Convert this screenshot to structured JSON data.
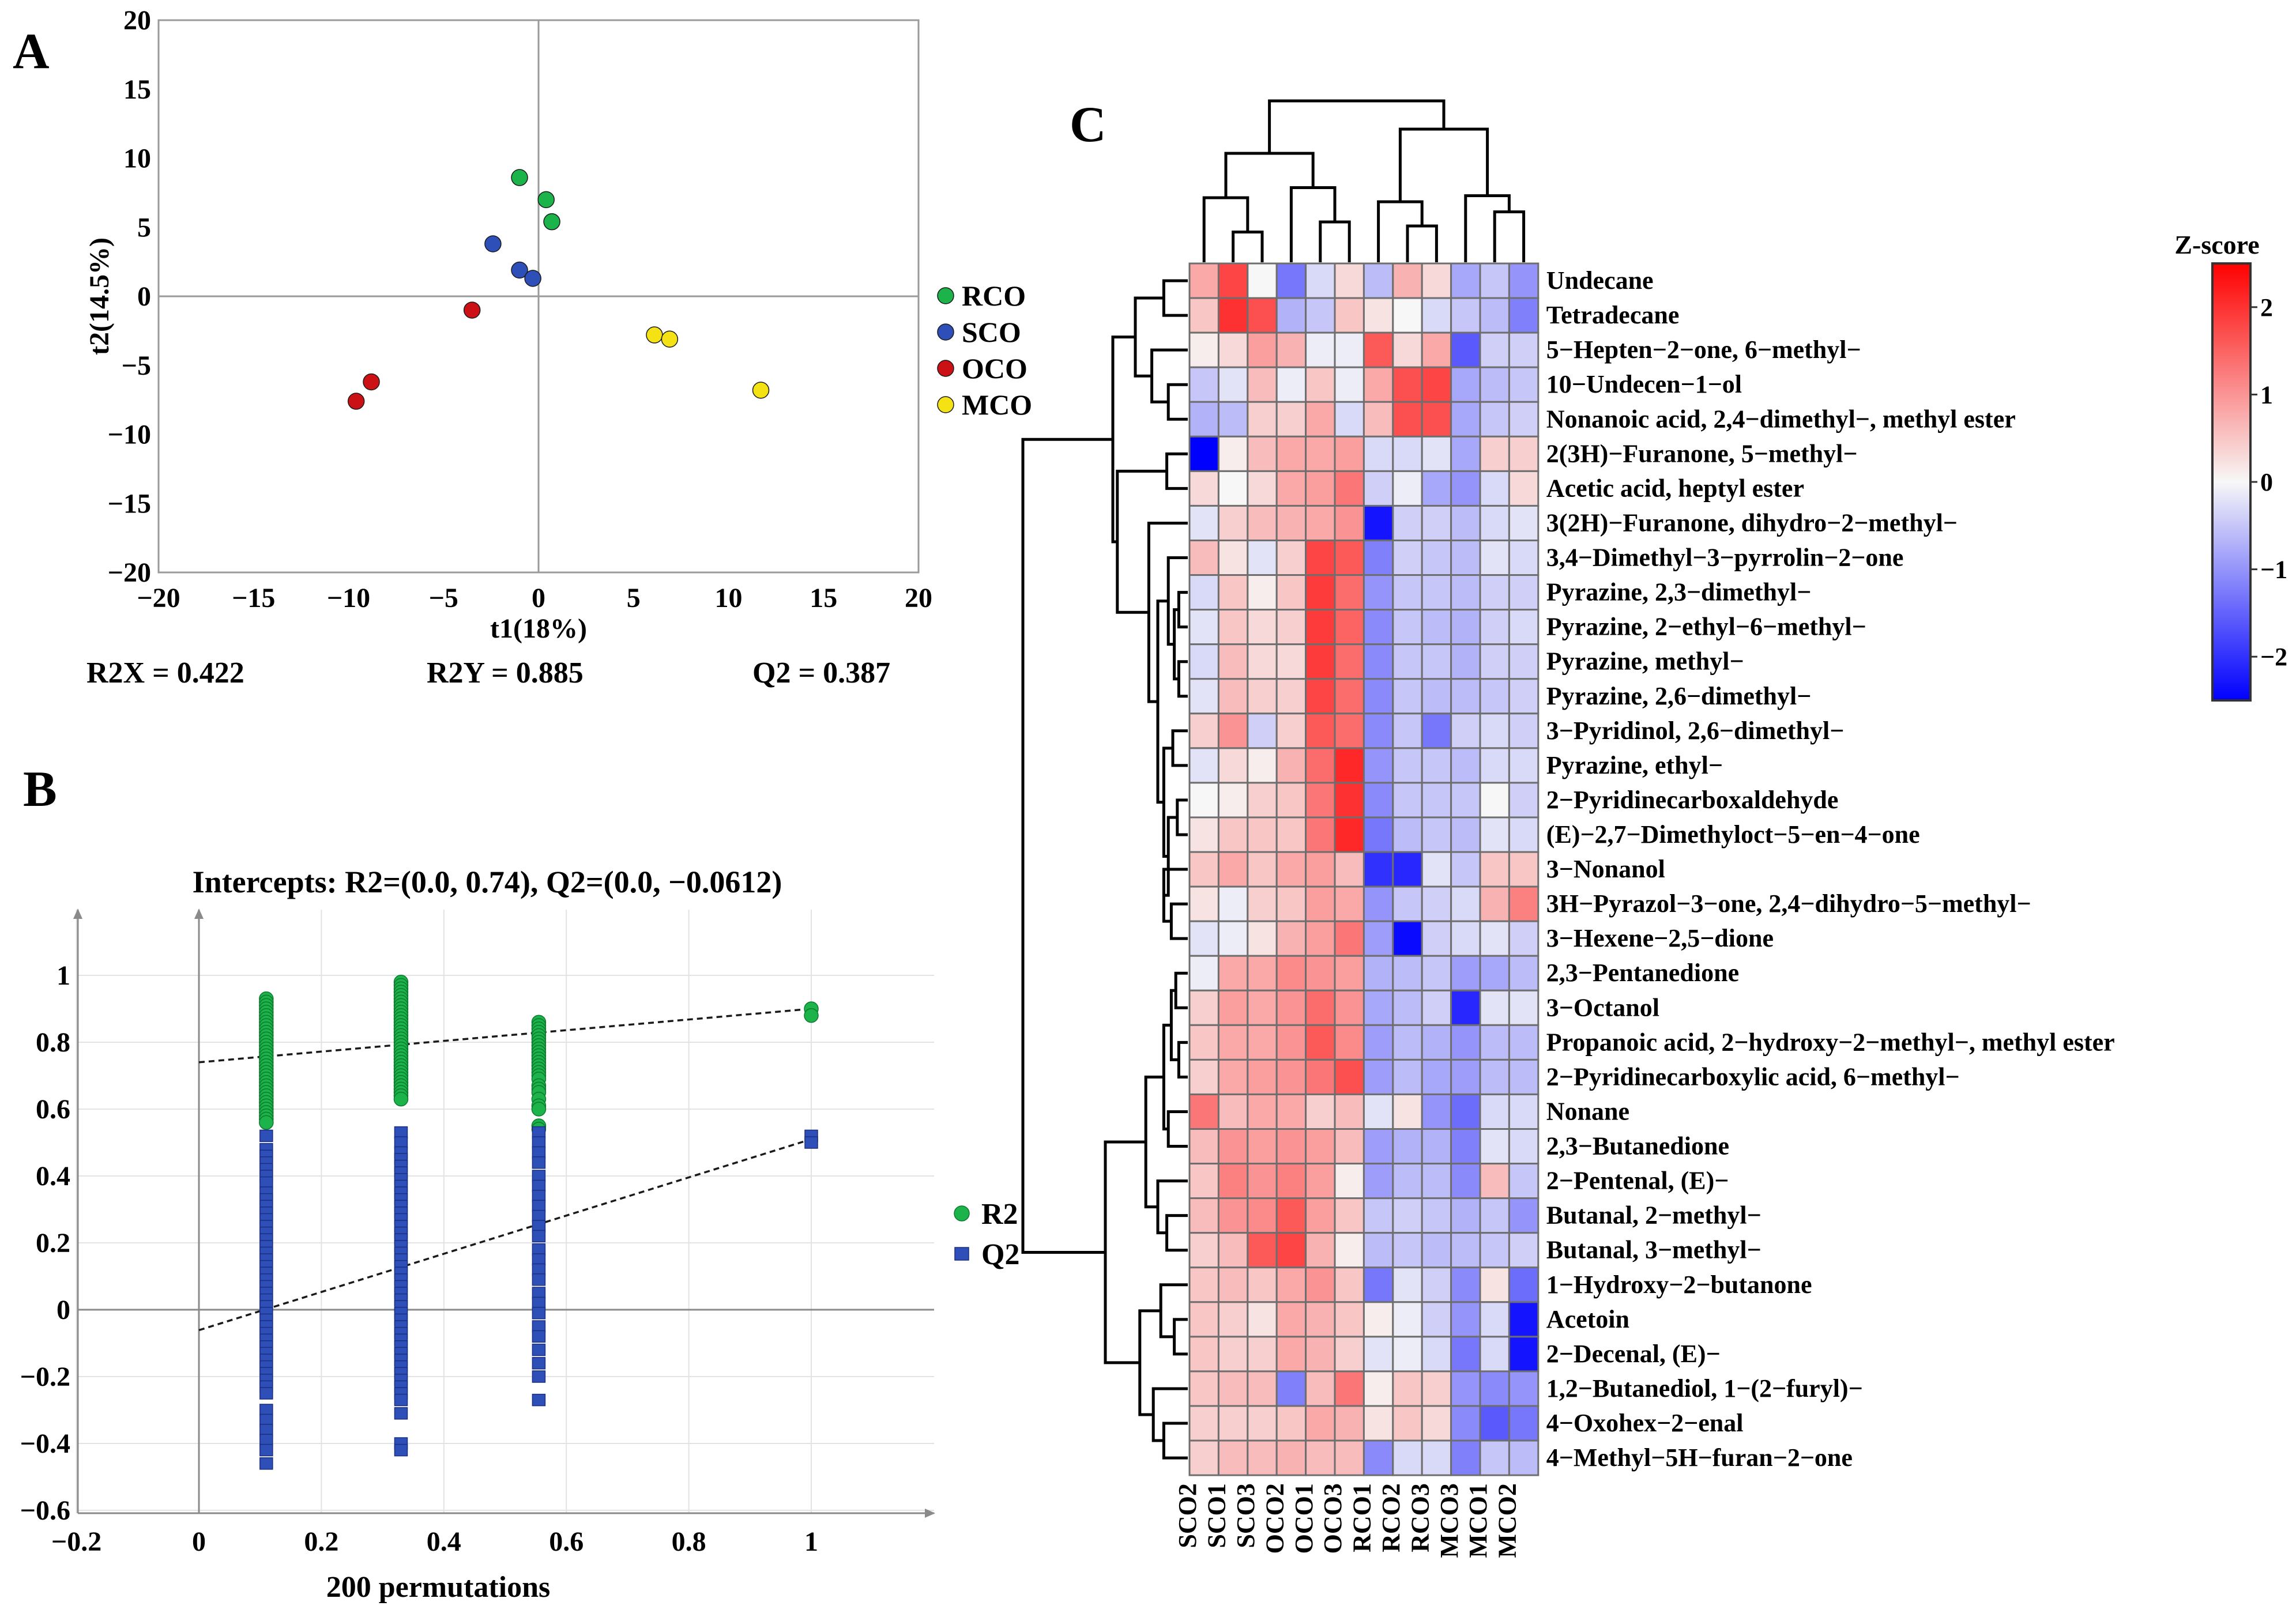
{
  "panels": {
    "a": "A",
    "b": "B",
    "c": "C"
  },
  "colors": {
    "RCO": "#1bb34a",
    "SCO": "#2e4fb8",
    "OCO": "#cc1116",
    "MCO": "#f4e215",
    "R2": "#1bb34a",
    "Q2": "#2e4fb8",
    "hm_low": "#0000ff",
    "hm_mid": "#f7f7f7",
    "hm_high": "#ff0000"
  },
  "chart_data": [
    {
      "type": "scatter",
      "panel": "A",
      "xlabel": "t1(18%)",
      "ylabel": "t2(14.5%)",
      "xlim": [
        -20,
        20
      ],
      "ylim": [
        -20,
        20
      ],
      "xticks": [
        "−20",
        "−15",
        "−10",
        "−5",
        "0",
        "5",
        "10",
        "15",
        "20"
      ],
      "yticks": [
        "20",
        "15",
        "10",
        "5",
        "0",
        "−5",
        "−10",
        "−15",
        "−20"
      ],
      "series": [
        {
          "name": "RCO",
          "points": [
            [
              -1.0,
              8.6
            ],
            [
              0.4,
              7.0
            ],
            [
              0.7,
              5.4
            ]
          ]
        },
        {
          "name": "SCO",
          "points": [
            [
              -2.4,
              3.8
            ],
            [
              -1.0,
              1.9
            ],
            [
              -0.3,
              1.3
            ]
          ]
        },
        {
          "name": "OCO",
          "points": [
            [
              -3.5,
              -1.0
            ],
            [
              -8.8,
              -6.2
            ],
            [
              -9.6,
              -7.6
            ]
          ]
        },
        {
          "name": "MCO",
          "points": [
            [
              6.1,
              -2.8
            ],
            [
              6.9,
              -3.1
            ],
            [
              11.7,
              -6.8
            ]
          ]
        }
      ],
      "stats": {
        "r2x": "R2X = 0.422",
        "r2y": "R2Y = 0.885",
        "q2": "Q2 = 0.387"
      }
    },
    {
      "type": "scatter",
      "panel": "B",
      "title": "Intercepts: R2=(0.0, 0.74), Q2=(0.0, −0.0612)",
      "xlabel": "200 permutations",
      "xlim": [
        -0.2,
        1.2
      ],
      "ylim": [
        -0.6,
        1.15
      ],
      "xticks": [
        "−0.2",
        "0",
        "0.2",
        "0.4",
        "0.6",
        "0.8",
        "1"
      ],
      "yticks": [
        "1",
        "0.8",
        "0.6",
        "0.4",
        "0.2",
        "0",
        "−0.2",
        "−0.4",
        "−0.6"
      ],
      "series": [
        {
          "name": "R2",
          "columns": [
            {
              "x": 0.11,
              "values": [
                0.93,
                0.92,
                0.91,
                0.9,
                0.89,
                0.88,
                0.87,
                0.86,
                0.85,
                0.84,
                0.83,
                0.82,
                0.81,
                0.8,
                0.79,
                0.78,
                0.77,
                0.76,
                0.75,
                0.74,
                0.73,
                0.72,
                0.71,
                0.7,
                0.69,
                0.68,
                0.67,
                0.66,
                0.65,
                0.64,
                0.63,
                0.62,
                0.61,
                0.6,
                0.59,
                0.58,
                0.57,
                0.56
              ]
            },
            {
              "x": 0.33,
              "values": [
                0.98,
                0.97,
                0.96,
                0.95,
                0.94,
                0.93,
                0.92,
                0.91,
                0.9,
                0.89,
                0.88,
                0.87,
                0.86,
                0.85,
                0.84,
                0.83,
                0.82,
                0.81,
                0.8,
                0.79,
                0.78,
                0.77,
                0.76,
                0.75,
                0.74,
                0.73,
                0.72,
                0.71,
                0.7,
                0.69,
                0.68,
                0.67,
                0.66,
                0.65,
                0.64,
                0.63
              ]
            },
            {
              "x": 0.555,
              "values": [
                0.86,
                0.85,
                0.84,
                0.83,
                0.82,
                0.81,
                0.8,
                0.79,
                0.78,
                0.77,
                0.76,
                0.75,
                0.74,
                0.73,
                0.72,
                0.71,
                0.7,
                0.69,
                0.67,
                0.66,
                0.65,
                0.63,
                0.61,
                0.6,
                0.55,
                0.54
              ]
            },
            {
              "x": 1.0,
              "values": [
                0.9,
                0.88
              ]
            }
          ]
        },
        {
          "name": "Q2",
          "columns": [
            {
              "x": 0.11,
              "values": [
                0.52,
                0.48,
                0.46,
                0.44,
                0.42,
                0.4,
                0.38,
                0.35,
                0.33,
                0.31,
                0.29,
                0.27,
                0.25,
                0.23,
                0.21,
                0.19,
                0.17,
                0.15,
                0.13,
                0.11,
                0.09,
                0.07,
                0.05,
                0.03,
                0.01,
                -0.01,
                -0.03,
                -0.05,
                -0.07,
                -0.09,
                -0.11,
                -0.13,
                -0.15,
                -0.17,
                -0.19,
                -0.21,
                -0.23,
                -0.25,
                -0.3,
                -0.33,
                -0.36,
                -0.39,
                -0.42,
                -0.46
              ]
            },
            {
              "x": 0.33,
              "values": [
                0.53,
                0.5,
                0.47,
                0.45,
                0.43,
                0.41,
                0.39,
                0.37,
                0.35,
                0.33,
                0.31,
                0.29,
                0.27,
                0.25,
                0.23,
                0.21,
                0.19,
                0.17,
                0.15,
                0.13,
                0.11,
                0.09,
                0.07,
                0.05,
                0.03,
                0.01,
                -0.01,
                -0.03,
                -0.05,
                -0.07,
                -0.09,
                -0.11,
                -0.13,
                -0.15,
                -0.17,
                -0.19,
                -0.21,
                -0.23,
                -0.25,
                -0.27,
                -0.31,
                -0.4,
                -0.42
              ]
            },
            {
              "x": 0.555,
              "values": [
                0.53,
                0.5,
                0.47,
                0.44,
                0.4,
                0.37,
                0.34,
                0.31,
                0.28,
                0.25,
                0.22,
                0.18,
                0.15,
                0.12,
                0.09,
                0.05,
                0.02,
                -0.01,
                -0.05,
                -0.08,
                -0.12,
                -0.16,
                -0.2,
                -0.27
              ]
            },
            {
              "x": 1.0,
              "values": [
                0.52,
                0.5
              ]
            }
          ]
        }
      ],
      "regression": [
        {
          "name": "R2",
          "from": [
            0,
            0.74
          ],
          "to": [
            1,
            0.9
          ]
        },
        {
          "name": "Q2",
          "from": [
            0,
            -0.0612
          ],
          "to": [
            1,
            0.51
          ]
        }
      ]
    },
    {
      "type": "heatmap",
      "panel": "C",
      "legend_title": "Z-score",
      "scale_ticks": [
        2,
        1,
        0,
        -1,
        -2
      ],
      "scale_range": [
        -2.5,
        2.5
      ],
      "columns": [
        "SCO2",
        "SCO1",
        "SCO3",
        "OCO2",
        "OCO1",
        "OCO3",
        "RCO1",
        "RCO2",
        "RCO3",
        "MCO3",
        "MCO1",
        "MCO2"
      ],
      "rows": [
        "Undecane",
        "Tetradecane",
        "5−Hepten−2−one, 6−methyl−",
        "10−Undecen−1−ol",
        "Nonanoic acid, 2,4−dimethyl−, methyl ester",
        "2(3H)−Furanone, 5−methyl−",
        "Acetic acid, heptyl ester",
        "3(2H)−Furanone, dihydro−2−methyl−",
        "3,4−Dimethyl−3−pyrrolin−2−one",
        "Pyrazine, 2,3−dimethyl−",
        "Pyrazine, 2−ethyl−6−methyl−",
        "Pyrazine, methyl−",
        "Pyrazine, 2,6−dimethyl−",
        "3−Pyridinol, 2,6−dimethyl−",
        "Pyrazine, ethyl−",
        "2−Pyridinecarboxaldehyde",
        "(E)−2,7−Dimethyloct−5−en−4−one",
        "3−Nonanol",
        "3H−Pyrazol−3−one, 2,4−dihydro−5−methyl−",
        "3−Hexene−2,5−dione",
        "2,3−Pentanedione",
        "3−Octanol",
        "Propanoic acid, 2−hydroxy−2−methyl−, methyl ester",
        "2−Pyridinecarboxylic acid, 6−methyl−",
        "Nonane",
        "2,3−Butanedione",
        "2−Pentenal, (E)−",
        "Butanal, 2−methyl−",
        "Butanal, 3−methyl−",
        "1−Hydroxy−2−butanone",
        "Acetoin",
        "2−Decenal, (E)−",
        "1,2−Butanediol, 1−(2−furyl)−",
        "4−Oxohex−2−enal",
        "4−Methyl−5H−furan−2−one"
      ],
      "values": [
        [
          0.8,
          1.8,
          0.0,
          -1.3,
          -0.3,
          0.3,
          -0.6,
          0.7,
          0.3,
          -0.8,
          -0.5,
          -1.0
        ],
        [
          0.5,
          2.0,
          1.7,
          -0.7,
          -0.5,
          0.5,
          0.2,
          0.0,
          -0.3,
          -0.5,
          -0.6,
          -1.2
        ],
        [
          0.1,
          0.3,
          0.9,
          0.7,
          -0.1,
          -0.1,
          1.6,
          0.3,
          0.8,
          -1.6,
          -0.4,
          -0.4
        ],
        [
          -0.5,
          -0.2,
          0.6,
          -0.1,
          0.5,
          -0.1,
          0.8,
          1.7,
          1.8,
          -0.8,
          -0.6,
          -0.5
        ],
        [
          -0.7,
          -0.6,
          0.4,
          0.4,
          0.8,
          -0.3,
          0.6,
          1.7,
          1.7,
          -0.8,
          -0.5,
          -0.4
        ],
        [
          -2.5,
          0.1,
          0.6,
          0.8,
          0.8,
          0.9,
          -0.3,
          -0.3,
          -0.2,
          -0.8,
          0.4,
          0.4
        ],
        [
          0.3,
          0.0,
          0.3,
          0.8,
          0.9,
          1.3,
          -0.4,
          -0.1,
          -0.8,
          -1.0,
          -0.3,
          0.3
        ],
        [
          -0.2,
          0.4,
          0.6,
          0.7,
          0.8,
          1.0,
          -2.3,
          -0.4,
          -0.4,
          -0.6,
          -0.3,
          -0.2
        ],
        [
          0.6,
          0.2,
          -0.2,
          0.4,
          1.8,
          1.6,
          -1.2,
          -0.4,
          -0.5,
          -0.6,
          -0.2,
          -0.3
        ],
        [
          -0.3,
          0.5,
          0.1,
          0.5,
          1.9,
          1.4,
          -1.0,
          -0.5,
          -0.5,
          -0.6,
          -0.4,
          -0.4
        ],
        [
          -0.2,
          0.5,
          0.3,
          0.4,
          1.9,
          1.5,
          -1.1,
          -0.5,
          -0.6,
          -0.7,
          -0.4,
          -0.3
        ],
        [
          -0.3,
          0.6,
          0.3,
          0.3,
          1.9,
          1.4,
          -1.1,
          -0.5,
          -0.5,
          -0.7,
          -0.4,
          -0.4
        ],
        [
          -0.2,
          0.6,
          0.4,
          0.4,
          1.8,
          1.4,
          -1.1,
          -0.5,
          -0.6,
          -0.6,
          -0.5,
          -0.4
        ],
        [
          0.4,
          1.0,
          -0.4,
          0.4,
          1.6,
          1.4,
          -1.1,
          -0.5,
          -1.3,
          -0.4,
          -0.3,
          -0.4
        ],
        [
          -0.2,
          0.3,
          0.1,
          0.7,
          1.4,
          2.1,
          -1.0,
          -0.5,
          -0.5,
          -0.6,
          -0.3,
          -0.3
        ],
        [
          0.0,
          0.1,
          0.4,
          0.5,
          1.3,
          2.0,
          -1.1,
          -0.5,
          -0.5,
          -0.5,
          0.0,
          -0.4
        ],
        [
          0.2,
          0.5,
          0.5,
          0.5,
          1.3,
          2.1,
          -1.3,
          -0.6,
          -0.5,
          -0.6,
          -0.2,
          -0.3
        ],
        [
          0.5,
          0.8,
          0.5,
          0.8,
          0.9,
          0.6,
          -2.0,
          -2.1,
          -0.2,
          -0.5,
          0.5,
          0.5
        ],
        [
          0.2,
          -0.1,
          0.4,
          0.5,
          0.9,
          0.8,
          -1.0,
          -0.5,
          -0.4,
          -0.3,
          0.7,
          1.2
        ],
        [
          -0.2,
          -0.1,
          0.2,
          0.7,
          0.9,
          1.3,
          -0.9,
          -2.4,
          -0.4,
          -0.3,
          -0.2,
          -0.4
        ],
        [
          -0.1,
          0.8,
          0.8,
          1.1,
          1.0,
          0.9,
          -0.7,
          -0.6,
          -0.5,
          -0.9,
          -0.8,
          -0.6
        ],
        [
          0.4,
          0.9,
          0.8,
          1.0,
          1.4,
          1.0,
          -0.8,
          -0.6,
          -0.4,
          -2.1,
          -0.2,
          -0.2
        ],
        [
          0.5,
          0.8,
          0.8,
          1.0,
          1.6,
          1.1,
          -0.9,
          -0.6,
          -0.7,
          -1.0,
          -0.6,
          -0.6
        ],
        [
          0.4,
          0.8,
          0.9,
          1.0,
          1.3,
          1.7,
          -0.9,
          -0.6,
          -0.8,
          -0.9,
          -0.6,
          -0.6
        ],
        [
          1.3,
          0.6,
          0.8,
          0.8,
          0.4,
          0.6,
          -0.2,
          0.2,
          -1.0,
          -1.4,
          -0.3,
          -0.3
        ],
        [
          0.6,
          1.0,
          0.9,
          1.0,
          0.9,
          0.6,
          -0.9,
          -0.7,
          -0.7,
          -1.2,
          -0.2,
          -0.3
        ],
        [
          0.5,
          1.2,
          1.0,
          1.2,
          0.9,
          0.1,
          -0.9,
          -0.6,
          -0.6,
          -1.1,
          0.6,
          -0.5
        ],
        [
          0.6,
          1.0,
          1.1,
          1.6,
          0.9,
          0.5,
          -0.5,
          -0.4,
          -0.5,
          -0.7,
          -0.5,
          -1.0
        ],
        [
          0.4,
          0.6,
          1.6,
          1.8,
          0.7,
          0.1,
          -0.6,
          -0.5,
          -0.6,
          -0.6,
          -0.5,
          -0.4
        ],
        [
          0.5,
          0.6,
          0.5,
          0.8,
          1.0,
          0.5,
          -1.3,
          -0.2,
          -0.4,
          -1.1,
          0.2,
          -1.4
        ],
        [
          0.5,
          0.4,
          0.2,
          0.8,
          0.7,
          0.5,
          0.1,
          -0.1,
          -0.4,
          -1.0,
          -0.3,
          -2.3
        ],
        [
          0.5,
          0.4,
          0.4,
          0.8,
          0.7,
          0.4,
          -0.2,
          -0.1,
          -0.3,
          -1.3,
          -0.3,
          -2.3
        ],
        [
          0.5,
          0.6,
          0.6,
          -1.2,
          0.6,
          1.3,
          0.1,
          0.5,
          0.4,
          -1.0,
          -1.1,
          -1.0
        ],
        [
          0.4,
          0.4,
          0.4,
          0.5,
          0.8,
          0.7,
          0.2,
          0.5,
          0.3,
          -1.1,
          -1.6,
          -1.3
        ],
        [
          0.4,
          0.6,
          0.6,
          0.7,
          0.6,
          0.6,
          -1.1,
          -0.3,
          -0.3,
          -1.2,
          -0.5,
          -0.6
        ]
      ]
    }
  ]
}
